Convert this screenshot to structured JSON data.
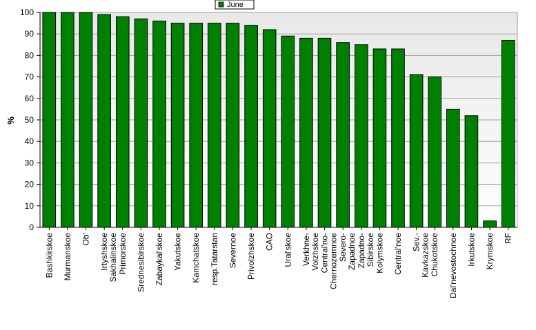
{
  "chart_data": {
    "type": "bar",
    "title": "",
    "xlabel": "",
    "ylabel": "%",
    "ylim": [
      0,
      100
    ],
    "yticks": [
      0,
      10,
      20,
      30,
      40,
      50,
      60,
      70,
      80,
      90,
      100
    ],
    "grid": true,
    "legend_position": "top-center",
    "series": [
      {
        "name": "June",
        "color": "#008000",
        "values": [
          100,
          100,
          100,
          99,
          98,
          97,
          96,
          95,
          95,
          95,
          95,
          94,
          92,
          89,
          88,
          88,
          86,
          85,
          83,
          83,
          71,
          70,
          55,
          52,
          3,
          87
        ]
      }
    ],
    "categories": [
      "Bashkirskoe",
      "Murmanskoe",
      "Ob'",
      "Irtyshskoe Sakhalinskoe",
      "Primorskoe",
      "Srednesibirskoe",
      "Zabaykal'skoe",
      "Yakutskoe",
      "Kamchatskoe",
      "resp.Tatarstan",
      "Severnoe",
      "Privolzhskoe",
      "CAO",
      "Ural'skoe",
      "Verkhne-Volzhskoe",
      "Central'no-Chernozemnoe",
      "Severo-Zapadnoe",
      "Zapadno-Sibirskoe",
      "Kolymskoe",
      "Central'noe",
      "Sev.-Kavkazskoe",
      "Chukotskoe",
      "Dal'nevostochnoe",
      "Irkutskoe",
      "Krymskoe",
      "RF"
    ]
  }
}
